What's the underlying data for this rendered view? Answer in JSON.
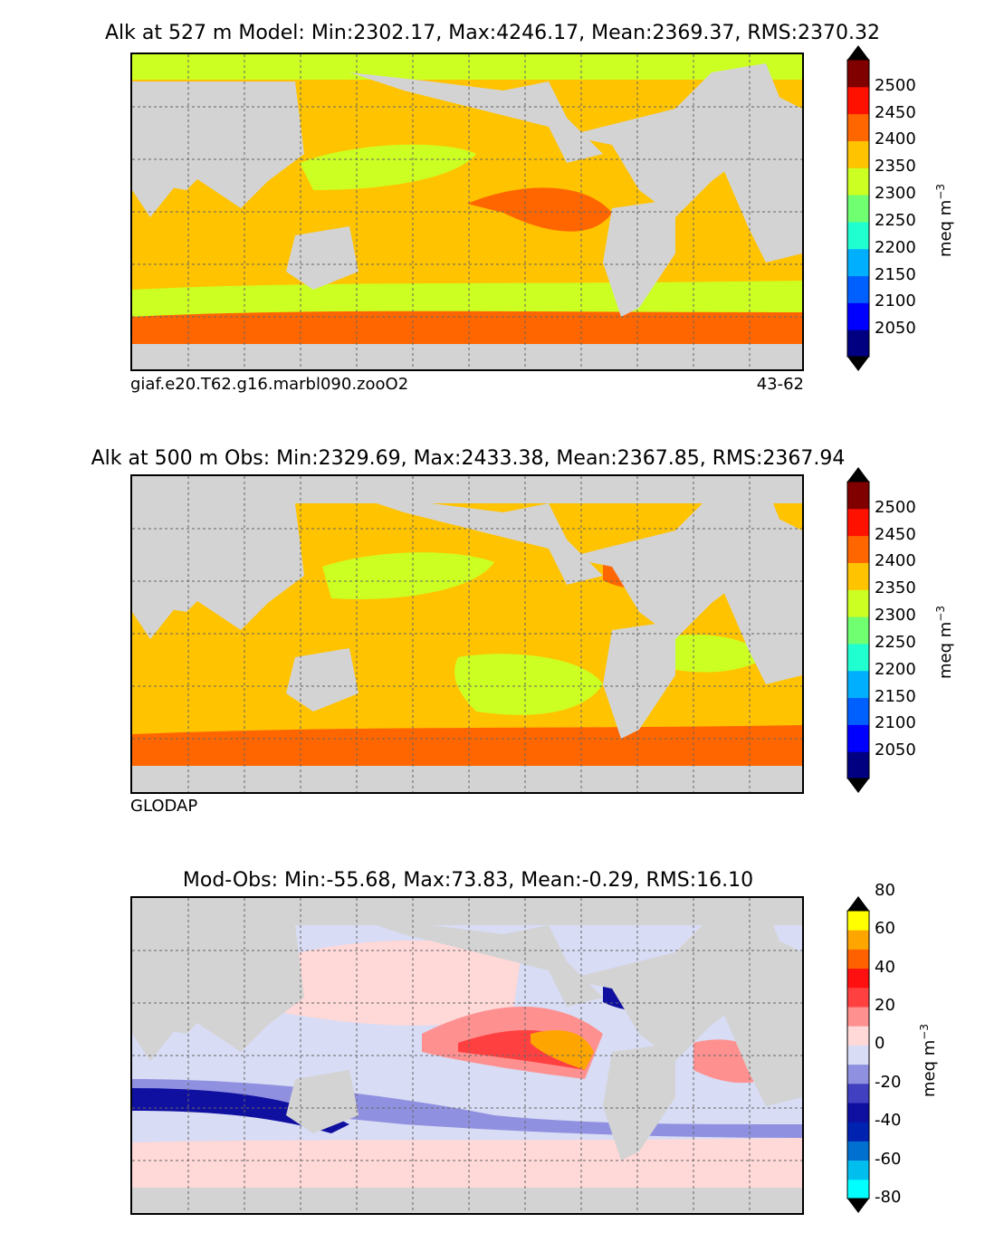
{
  "chart_data": [
    {
      "type": "heatmap",
      "title": "Alk at 527 m Model: Min:2302.17, Max:4246.17, Mean:2369.37, RMS:2370.32",
      "caption_left": "giaf.e20.T62.g16.marbl090.zooO2",
      "caption_right": "43-62",
      "colorbar": {
        "unit": "meq m^-3",
        "ticks": [
          2050,
          2100,
          2150,
          2200,
          2250,
          2300,
          2350,
          2400,
          2450,
          2500
        ],
        "colors": [
          "#000080",
          "#0000ff",
          "#0060ff",
          "#00b0ff",
          "#20ffd0",
          "#70ff70",
          "#ccff22",
          "#ffc300",
          "#ff6600",
          "#ff1100",
          "#800000"
        ]
      }
    },
    {
      "type": "heatmap",
      "title": "Alk at 500 m Obs: Min:2329.69, Max:2433.38, Mean:2367.85, RMS:2367.94",
      "caption_left": "GLODAP",
      "colorbar": {
        "unit": "meq m^-3",
        "ticks": [
          2050,
          2100,
          2150,
          2200,
          2250,
          2300,
          2350,
          2400,
          2450,
          2500
        ],
        "colors": [
          "#000080",
          "#0000ff",
          "#0060ff",
          "#00b0ff",
          "#20ffd0",
          "#70ff70",
          "#ccff22",
          "#ffc300",
          "#ff6600",
          "#ff1100",
          "#800000"
        ]
      }
    },
    {
      "type": "heatmap",
      "title": "Mod-Obs: Min:-55.68, Max:73.83, Mean:-0.29, RMS:16.10",
      "colorbar": {
        "unit": "meq m^-3",
        "ticks": [
          -80,
          -60,
          -40,
          -20,
          0,
          20,
          40,
          60,
          80
        ],
        "colors": [
          "#00ffff",
          "#00bfee",
          "#0070d0",
          "#0022b0",
          "#1010a0",
          "#4040c0",
          "#9090e0",
          "#d8dcf4",
          "#ffd8d8",
          "#ff9090",
          "#ff4040",
          "#ff1010",
          "#ff6000",
          "#ffa500",
          "#ffff00"
        ]
      }
    }
  ]
}
